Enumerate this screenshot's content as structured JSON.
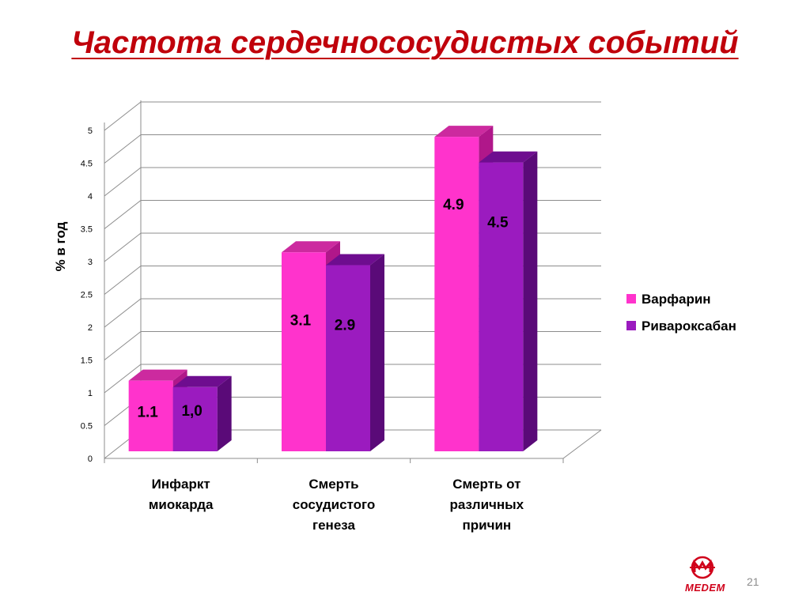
{
  "slide": {
    "title": "Частота сердечнососудистых событий",
    "number": "21",
    "logo_text": "MEDEM"
  },
  "colors": {
    "title": "#c0000b",
    "warfarin_front": "#ff33cc",
    "warfarin_top": "#cc2a9f",
    "warfarin_side": "#b0178a",
    "rivaroxaban_front": "#9b1bbf",
    "rivaroxaban_top": "#6e0d8f",
    "rivaroxaban_side": "#5a0a78",
    "grid": "#8c8c8c"
  },
  "chart_data": {
    "type": "bar",
    "title": "",
    "xlabel": "",
    "ylabel": "% в год",
    "ylim": [
      0,
      5
    ],
    "yticks": [
      "0",
      "0.5",
      "1",
      "1.5",
      "2",
      "2.5",
      "3",
      "3.5",
      "4",
      "4.5",
      "5"
    ],
    "grid": true,
    "legend_position": "right",
    "categories": [
      [
        "Инфаркт",
        "миокарда"
      ],
      [
        "Смерть",
        "сосудистого",
        "генеза"
      ],
      [
        "Смерть от",
        "различных",
        "причин"
      ]
    ],
    "series": [
      {
        "name": "Варфарин",
        "values": [
          1.1,
          3.1,
          4.9
        ],
        "labels": [
          "1.1",
          "3.1",
          "4.9"
        ]
      },
      {
        "name": "Ривароксабан",
        "values": [
          1.0,
          2.9,
          4.5
        ],
        "labels": [
          "1,0",
          "2.9",
          "4.5"
        ]
      }
    ]
  }
}
